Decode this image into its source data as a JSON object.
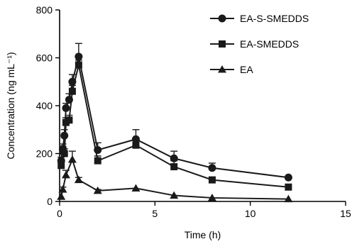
{
  "chart_data": {
    "type": "line",
    "xlabel": "Time (h)",
    "ylabel": "Concentration (ng mL⁻¹)",
    "xlim": [
      0,
      15
    ],
    "ylim": [
      0,
      800
    ],
    "x_ticks": [
      0,
      5,
      10,
      15
    ],
    "y_ticks": [
      0,
      200,
      400,
      600,
      800
    ],
    "grid": false,
    "legend_position": "top-right",
    "series": [
      {
        "name": "EA-S-SMEDDS",
        "marker": "circle",
        "x": [
          0.083,
          0.167,
          0.25,
          0.333,
          0.5,
          0.667,
          1,
          2,
          4,
          6,
          8,
          12
        ],
        "y": [
          170,
          220,
          275,
          390,
          425,
          500,
          605,
          215,
          260,
          180,
          140,
          100
        ],
        "err": [
          15,
          20,
          25,
          20,
          25,
          30,
          55,
          30,
          40,
          30,
          20,
          0
        ]
      },
      {
        "name": "EA-SMEDDS",
        "marker": "square",
        "x": [
          0.083,
          0.167,
          0.25,
          0.333,
          0.5,
          0.667,
          1,
          2,
          4,
          6,
          8,
          12
        ],
        "y": [
          150,
          210,
          200,
          330,
          340,
          460,
          570,
          170,
          235,
          145,
          90,
          60
        ],
        "err": [
          15,
          20,
          20,
          20,
          20,
          25,
          20,
          20,
          25,
          25,
          10,
          0
        ]
      },
      {
        "name": "EA",
        "marker": "triangle",
        "x": [
          0.083,
          0.167,
          0.333,
          0.667,
          1,
          2,
          4,
          6,
          8,
          12
        ],
        "y": [
          20,
          50,
          110,
          175,
          90,
          45,
          55,
          25,
          15,
          10
        ],
        "err": [
          0,
          10,
          20,
          35,
          10,
          5,
          0,
          0,
          0,
          0
        ]
      }
    ]
  }
}
